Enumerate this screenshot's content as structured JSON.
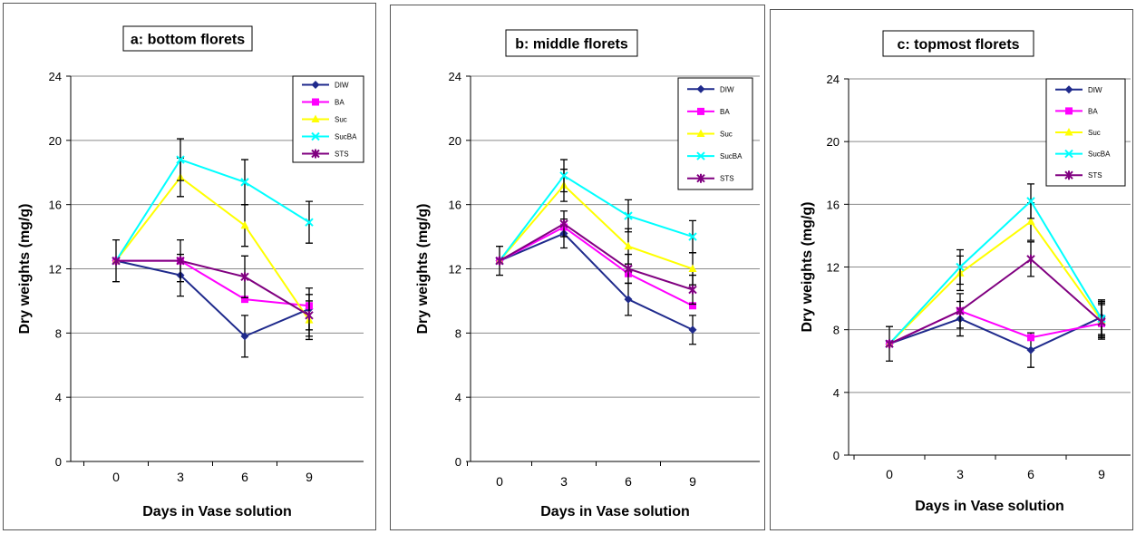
{
  "chart_data": [
    {
      "type": "line",
      "title": "a: bottom florets",
      "xlabel": "Days in Vase solution",
      "ylabel": "Dry weights (mg/g)",
      "categories": [
        "0",
        "3",
        "6",
        "9"
      ],
      "ylim": [
        0,
        24
      ],
      "yticks": [
        "0",
        "4",
        "8",
        "12",
        "16",
        "20",
        "24"
      ],
      "grid": true,
      "legend": "top-right",
      "series": [
        {
          "name": "DIW",
          "values": [
            12.5,
            11.6,
            7.8,
            9.5
          ],
          "err": [
            1.3,
            1.3,
            1.3,
            1.3
          ],
          "color": "#1F2A8C",
          "marker": "diamond"
        },
        {
          "name": "BA",
          "values": [
            12.5,
            12.5,
            10.1,
            9.7
          ],
          "err": [
            0,
            0,
            0,
            0
          ],
          "color": "#FF00FF",
          "marker": "square"
        },
        {
          "name": "Suc",
          "values": [
            12.5,
            17.7,
            14.7,
            8.8
          ],
          "err": [
            0,
            1.2,
            1.3,
            1.2
          ],
          "color": "#FFFF00",
          "marker": "triangle"
        },
        {
          "name": "SucBA",
          "values": [
            12.5,
            18.8,
            17.4,
            14.9
          ],
          "err": [
            0,
            1.3,
            1.4,
            1.3
          ],
          "color": "#00FFFF",
          "marker": "x"
        },
        {
          "name": "STS",
          "values": [
            12.5,
            12.5,
            11.5,
            9.1
          ],
          "err": [
            0,
            1.3,
            1.3,
            1.3
          ],
          "color": "#800080",
          "marker": "star"
        }
      ]
    },
    {
      "type": "line",
      "title": "b: middle florets",
      "xlabel": "Days in Vase solution",
      "ylabel": "Dry weights (mg/g)",
      "categories": [
        "0",
        "3",
        "6",
        "9"
      ],
      "ylim": [
        0,
        24
      ],
      "yticks": [
        "0",
        "4",
        "8",
        "12",
        "16",
        "20",
        "24"
      ],
      "grid": true,
      "legend": "top-right",
      "series": [
        {
          "name": "DIW",
          "values": [
            12.5,
            14.2,
            10.1,
            8.2
          ],
          "err": [
            0.9,
            0.9,
            1.0,
            0.9
          ],
          "color": "#1F2A8C",
          "marker": "diamond"
        },
        {
          "name": "BA",
          "values": [
            12.5,
            14.6,
            11.7,
            9.7
          ],
          "err": [
            0,
            0,
            0,
            0
          ],
          "color": "#FF00FF",
          "marker": "square"
        },
        {
          "name": "Suc",
          "values": [
            12.5,
            17.2,
            13.4,
            12.0
          ],
          "err": [
            0,
            1.0,
            1.1,
            1.0
          ],
          "color": "#FFFF00",
          "marker": "triangle"
        },
        {
          "name": "SucBA",
          "values": [
            12.5,
            17.8,
            15.3,
            14.0
          ],
          "err": [
            0,
            1.0,
            1.0,
            1.0
          ],
          "color": "#00FFFF",
          "marker": "x"
        },
        {
          "name": "STS",
          "values": [
            12.5,
            14.8,
            12.0,
            10.7
          ],
          "err": [
            0,
            0.8,
            0.9,
            0.9
          ],
          "color": "#800080",
          "marker": "star"
        }
      ]
    },
    {
      "type": "line",
      "title": "c: topmost florets",
      "xlabel": "Days in Vase solution",
      "ylabel": "Dry weights (mg/g)",
      "categories": [
        "0",
        "3",
        "6",
        "9"
      ],
      "ylim": [
        0,
        24
      ],
      "yticks": [
        "0",
        "4",
        "8",
        "12",
        "16",
        "20",
        "24"
      ],
      "grid": true,
      "legend": "top-right",
      "series": [
        {
          "name": "DIW",
          "values": [
            7.1,
            8.7,
            6.7,
            8.8
          ],
          "err": [
            1.1,
            1.1,
            1.1,
            1.1
          ],
          "color": "#1F2A8C",
          "marker": "diamond"
        },
        {
          "name": "BA",
          "values": [
            7.1,
            9.2,
            7.5,
            8.4
          ],
          "err": [
            0,
            0,
            0,
            0
          ],
          "color": "#FF00FF",
          "marker": "square"
        },
        {
          "name": "Suc",
          "values": [
            7.1,
            11.6,
            14.9,
            8.6
          ],
          "err": [
            0,
            1.1,
            1.2,
            1.1
          ],
          "color": "#FFFF00",
          "marker": "triangle"
        },
        {
          "name": "SucBA",
          "values": [
            7.1,
            12.0,
            16.2,
            8.7
          ],
          "err": [
            0,
            1.1,
            1.1,
            1.1
          ],
          "color": "#00FFFF",
          "marker": "x"
        },
        {
          "name": "STS",
          "values": [
            7.1,
            9.2,
            12.5,
            8.5
          ],
          "err": [
            0,
            1.1,
            1.1,
            1.1
          ],
          "color": "#800080",
          "marker": "star"
        }
      ]
    }
  ]
}
